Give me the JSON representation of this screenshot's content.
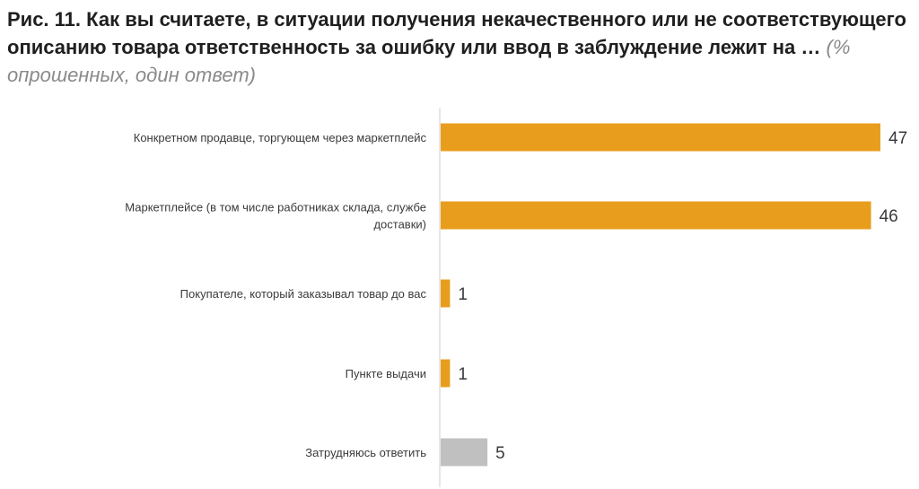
{
  "title": {
    "main": "Рис. 11. Как вы считаете, в ситуации получения некачественного или не соответствующего описанию товара ответственность за ошибку или ввод в заблуждение лежит на …",
    "sub": "(% опрошенных, один ответ)"
  },
  "colors": {
    "primary": "#E89E1C",
    "neutral": "#C0C0C0",
    "axis": "#cfcfcf",
    "text": "#3a3a3a"
  },
  "chart_data": {
    "type": "bar",
    "orientation": "horizontal",
    "categories": [
      [
        "Конкретном продавце, торгующем через маркетплейс"
      ],
      [
        "Маркетплейсе (в том числе работниках склада, службе",
        "доставки)"
      ],
      [
        "Покупателе, который заказывал товар до вас"
      ],
      [
        "Пункте выдачи"
      ],
      [
        "Затрудняюсь ответить"
      ]
    ],
    "values": [
      47,
      46,
      1,
      1,
      5
    ],
    "bar_colors": [
      "#E89E1C",
      "#E89E1C",
      "#E89E1C",
      "#E89E1C",
      "#C0C0C0"
    ],
    "xlim": [
      0,
      47
    ],
    "grid": false,
    "legend": "none"
  }
}
